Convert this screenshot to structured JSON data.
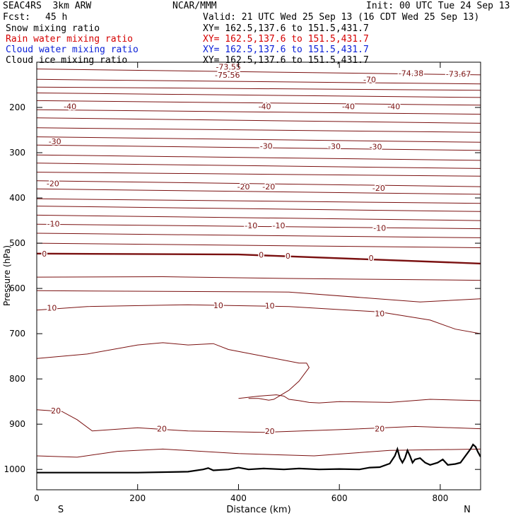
{
  "header": {
    "model": "SEAC4RS  3km ARW",
    "center": "NCAR/MMM",
    "init": "Init: 00 UTC Tue 24 Sep 13",
    "fcst_label": "Fcst:",
    "fcst_value": "45 h",
    "valid": "Valid: 21 UTC Wed 25 Sep 13 (16 CDT Wed 25 Sep 13)"
  },
  "legend": [
    {
      "label": "Snow mixing ratio",
      "xy": "XY= 162.5,137.6 to 151.5,431.7",
      "color": "#000000"
    },
    {
      "label": "Rain water mixing ratio",
      "xy": "XY= 162.5,137.6 to 151.5,431.7",
      "color": "#d40000"
    },
    {
      "label": "Cloud water mixing ratio",
      "xy": "XY= 162.5,137.6 to 151.5,431.7",
      "color": "#0a1fd6"
    },
    {
      "label": "Cloud ice mixing ratio",
      "xy": "XY= 162.5,137.6 to 151.5,431.7",
      "color": "#000000"
    }
  ],
  "chart_data": {
    "type": "line",
    "title": "",
    "xlabel": "Distance (km)",
    "ylabel": "Pressure (hPa)",
    "xlim": [
      0,
      880
    ],
    "ylim": [
      1045,
      100
    ],
    "x_ticks": [
      0,
      200,
      400,
      600,
      800
    ],
    "y_ticks": [
      200,
      300,
      400,
      500,
      600,
      700,
      800,
      900,
      1000
    ],
    "x_end_labels": {
      "left": "S",
      "right": "N"
    },
    "contour_color": "#7a1010",
    "isotherms": [
      {
        "points": [
          [
            0,
            115
          ],
          [
            880,
            128
          ]
        ]
      },
      {
        "points": [
          [
            0,
            138
          ],
          [
            880,
            148
          ]
        ]
      },
      {
        "points": [
          [
            0,
            155
          ],
          [
            880,
            162
          ]
        ]
      },
      {
        "points": [
          [
            0,
            168
          ],
          [
            880,
            178
          ]
        ]
      },
      {
        "points": [
          [
            0,
            185
          ],
          [
            880,
            195
          ]
        ]
      },
      {
        "points": [
          [
            0,
            205
          ],
          [
            880,
            215
          ]
        ]
      },
      {
        "points": [
          [
            0,
            223
          ],
          [
            880,
            235
          ]
        ]
      },
      {
        "points": [
          [
            0,
            245
          ],
          [
            880,
            255
          ]
        ]
      },
      {
        "points": [
          [
            0,
            265
          ],
          [
            880,
            277
          ]
        ]
      },
      {
        "points": [
          [
            0,
            283
          ],
          [
            880,
            295
          ]
        ]
      },
      {
        "points": [
          [
            0,
            305
          ],
          [
            880,
            317
          ]
        ]
      },
      {
        "points": [
          [
            0,
            323
          ],
          [
            880,
            335
          ]
        ]
      },
      {
        "points": [
          [
            0,
            343
          ],
          [
            880,
            352
          ]
        ]
      },
      {
        "points": [
          [
            0,
            362
          ],
          [
            880,
            375
          ]
        ]
      },
      {
        "points": [
          [
            0,
            380
          ],
          [
            880,
            392
          ]
        ]
      },
      {
        "points": [
          [
            0,
            402
          ],
          [
            880,
            412
          ]
        ]
      },
      {
        "points": [
          [
            0,
            418
          ],
          [
            880,
            430
          ]
        ]
      },
      {
        "points": [
          [
            0,
            438
          ],
          [
            880,
            450
          ]
        ]
      },
      {
        "points": [
          [
            0,
            458
          ],
          [
            880,
            468
          ]
        ]
      },
      {
        "points": [
          [
            0,
            478
          ],
          [
            880,
            488
          ]
        ]
      },
      {
        "points": [
          [
            0,
            500
          ],
          [
            880,
            510
          ]
        ]
      },
      {
        "points": [
          [
            0,
            523
          ],
          [
            400,
            525
          ],
          [
            880,
            545
          ]
        ],
        "bold": true
      },
      {
        "points": [
          [
            0,
            575
          ],
          [
            250,
            574
          ],
          [
            500,
            578
          ],
          [
            880,
            582
          ]
        ]
      },
      {
        "points": [
          [
            0,
            605
          ],
          [
            500,
            608
          ],
          [
            760,
            630
          ],
          [
            880,
            623
          ]
        ]
      },
      {
        "points": [
          [
            0,
            648
          ],
          [
            100,
            640
          ],
          [
            300,
            636
          ],
          [
            500,
            640
          ],
          [
            680,
            652
          ],
          [
            780,
            670
          ],
          [
            830,
            690
          ],
          [
            880,
            700
          ]
        ]
      },
      {
        "points": [
          [
            0,
            755
          ],
          [
            100,
            745
          ],
          [
            200,
            725
          ],
          [
            250,
            720
          ],
          [
            300,
            725
          ],
          [
            350,
            722
          ],
          [
            380,
            735
          ],
          [
            450,
            750
          ],
          [
            520,
            765
          ],
          [
            535,
            765
          ],
          [
            540,
            775
          ],
          [
            530,
            790
          ],
          [
            520,
            805
          ],
          [
            500,
            825
          ],
          [
            470,
            845
          ],
          [
            460,
            847
          ],
          [
            440,
            843
          ],
          [
            420,
            843
          ]
        ]
      },
      {
        "points": [
          [
            400,
            843
          ],
          [
            440,
            838
          ],
          [
            475,
            835
          ],
          [
            490,
            838
          ],
          [
            500,
            845
          ],
          [
            520,
            848
          ],
          [
            540,
            852
          ],
          [
            560,
            853
          ],
          [
            600,
            850
          ],
          [
            700,
            852
          ],
          [
            780,
            845
          ],
          [
            880,
            848
          ]
        ]
      },
      {
        "points": [
          [
            0,
            868
          ],
          [
            50,
            872
          ],
          [
            80,
            890
          ],
          [
            110,
            915
          ],
          [
            200,
            908
          ],
          [
            300,
            915
          ],
          [
            450,
            918
          ],
          [
            600,
            912
          ],
          [
            750,
            905
          ],
          [
            880,
            910
          ]
        ]
      },
      {
        "points": [
          [
            0,
            970
          ],
          [
            80,
            973
          ],
          [
            160,
            960
          ],
          [
            250,
            955
          ],
          [
            400,
            965
          ],
          [
            550,
            970
          ],
          [
            700,
            958
          ],
          [
            880,
            955
          ]
        ]
      }
    ],
    "contour_labels": [
      {
        "text": "-73.55",
        "x": 380,
        "y": 110
      },
      {
        "text": "-75.56",
        "x": 378,
        "y": 128
      },
      {
        "text": "-74.38",
        "x": 742,
        "y": 124
      },
      {
        "text": "-73.67",
        "x": 836,
        "y": 126
      },
      {
        "text": "-70",
        "x": 660,
        "y": 138
      },
      {
        "text": "-40",
        "x": 66,
        "y": 198
      },
      {
        "text": "-40",
        "x": 452,
        "y": 198
      },
      {
        "text": "-40",
        "x": 618,
        "y": 198
      },
      {
        "text": "-40",
        "x": 708,
        "y": 198
      },
      {
        "text": "-30",
        "x": 36,
        "y": 275
      },
      {
        "text": "-30",
        "x": 455,
        "y": 285
      },
      {
        "text": "-30",
        "x": 590,
        "y": 286
      },
      {
        "text": "-30",
        "x": 672,
        "y": 287
      },
      {
        "text": "-20",
        "x": 32,
        "y": 368
      },
      {
        "text": "-20",
        "x": 410,
        "y": 375
      },
      {
        "text": "-20",
        "x": 460,
        "y": 375
      },
      {
        "text": "-20",
        "x": 678,
        "y": 378
      },
      {
        "text": "-10",
        "x": 33,
        "y": 457
      },
      {
        "text": "-10",
        "x": 425,
        "y": 461
      },
      {
        "text": "-10",
        "x": 480,
        "y": 461
      },
      {
        "text": "-10",
        "x": 680,
        "y": 466
      },
      {
        "text": "0",
        "x": 15,
        "y": 523
      },
      {
        "text": "0",
        "x": 445,
        "y": 526
      },
      {
        "text": "0",
        "x": 498,
        "y": 528
      },
      {
        "text": "0",
        "x": 663,
        "y": 533
      },
      {
        "text": "10",
        "x": 30,
        "y": 643
      },
      {
        "text": "10",
        "x": 360,
        "y": 637
      },
      {
        "text": "10",
        "x": 462,
        "y": 638
      },
      {
        "text": "10",
        "x": 680,
        "y": 655
      },
      {
        "text": "20",
        "x": 38,
        "y": 870
      },
      {
        "text": "20",
        "x": 248,
        "y": 910
      },
      {
        "text": "20",
        "x": 462,
        "y": 915
      },
      {
        "text": "20",
        "x": 680,
        "y": 910
      }
    ],
    "terrain": {
      "color": "#000000",
      "points": [
        [
          0,
          1007
        ],
        [
          200,
          1007
        ],
        [
          300,
          1005
        ],
        [
          330,
          1000
        ],
        [
          340,
          997
        ],
        [
          350,
          1002
        ],
        [
          380,
          1000
        ],
        [
          400,
          996
        ],
        [
          420,
          1000
        ],
        [
          450,
          998
        ],
        [
          490,
          1000
        ],
        [
          520,
          998
        ],
        [
          560,
          1000
        ],
        [
          600,
          999
        ],
        [
          640,
          1000
        ],
        [
          660,
          996
        ],
        [
          680,
          995
        ],
        [
          700,
          987
        ],
        [
          710,
          970
        ],
        [
          715,
          955
        ],
        [
          720,
          975
        ],
        [
          725,
          985
        ],
        [
          730,
          975
        ],
        [
          735,
          958
        ],
        [
          740,
          970
        ],
        [
          745,
          985
        ],
        [
          750,
          978
        ],
        [
          760,
          975
        ],
        [
          770,
          985
        ],
        [
          780,
          990
        ],
        [
          795,
          985
        ],
        [
          805,
          978
        ],
        [
          815,
          990
        ],
        [
          830,
          988
        ],
        [
          840,
          985
        ],
        [
          850,
          970
        ],
        [
          860,
          955
        ],
        [
          865,
          945
        ],
        [
          870,
          950
        ],
        [
          875,
          962
        ],
        [
          880,
          972
        ]
      ]
    }
  }
}
